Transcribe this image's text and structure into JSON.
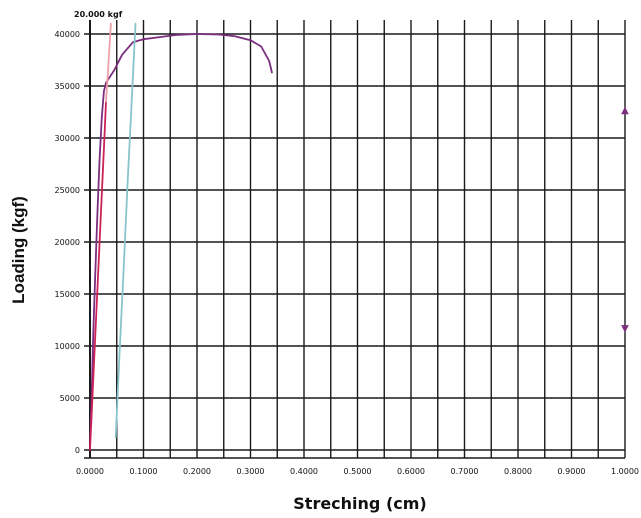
{
  "chart_data": {
    "type": "line",
    "title": "",
    "xlabel": "Streching (cm)",
    "ylabel": "Loading (kgf)",
    "xlim": [
      0,
      1.0
    ],
    "ylim": [
      0,
      40000
    ],
    "grid": true,
    "x_ticks": [
      0.0,
      0.1,
      0.2,
      0.3,
      0.4,
      0.5,
      0.6,
      0.7,
      0.8,
      0.9,
      1.0
    ],
    "x_tick_labels": [
      "0.0000",
      "0.1000",
      "0.2000",
      "0.3000",
      "0.4000",
      "0.5000",
      "0.6000",
      "0.7000",
      "0.8000",
      "0.9000",
      "1.0000"
    ],
    "y_ticks": [
      0,
      5000,
      10000,
      15000,
      20000,
      25000,
      30000,
      35000,
      40000
    ],
    "y_tick_labels": [
      "0",
      "5000",
      "10000",
      "15000",
      "20000",
      "25000",
      "30000",
      "35000",
      "40000"
    ],
    "annotations": [
      {
        "text": "20.000 kgf",
        "x": 0.0,
        "y": 41500
      }
    ],
    "markers": [
      {
        "symbol": "▲",
        "x": 1.0,
        "y": 32800,
        "color": "#7b2d7e"
      },
      {
        "symbol": "▼",
        "x": 1.0,
        "y": 11800,
        "color": "#7b2d7e"
      }
    ],
    "series": [
      {
        "color": "#7b2d7e",
        "x": [
          0.0,
          0.003,
          0.006,
          0.01,
          0.014,
          0.018,
          0.022,
          0.026,
          0.03,
          0.035,
          0.045,
          0.06,
          0.08,
          0.1,
          0.13,
          0.16,
          0.2,
          0.24,
          0.27,
          0.3,
          0.32,
          0.335,
          0.34
        ],
        "y": [
          500,
          5000,
          11000,
          17000,
          23000,
          28000,
          32000,
          34500,
          35300,
          35700,
          36500,
          38000,
          39200,
          39500,
          39700,
          39900,
          40000,
          39950,
          39800,
          39400,
          38800,
          37400,
          36300
        ]
      },
      {
        "color": "#cc2255",
        "x": [
          0.0,
          0.0045,
          0.009,
          0.0135,
          0.018,
          0.0225,
          0.027,
          0.03
        ],
        "y": [
          0,
          5000,
          10000,
          15000,
          20000,
          25000,
          30000,
          33500
        ]
      },
      {
        "color": "#f0a0a8",
        "x": [
          0.03,
          0.033,
          0.036,
          0.039
        ],
        "y": [
          33500,
          36000,
          38500,
          41000
        ]
      },
      {
        "color": "#88c4cc",
        "x": [
          0.048,
          0.055,
          0.063,
          0.07,
          0.078,
          0.085
        ],
        "y": [
          1200,
          9000,
          17500,
          25500,
          33500,
          41000
        ]
      }
    ]
  }
}
